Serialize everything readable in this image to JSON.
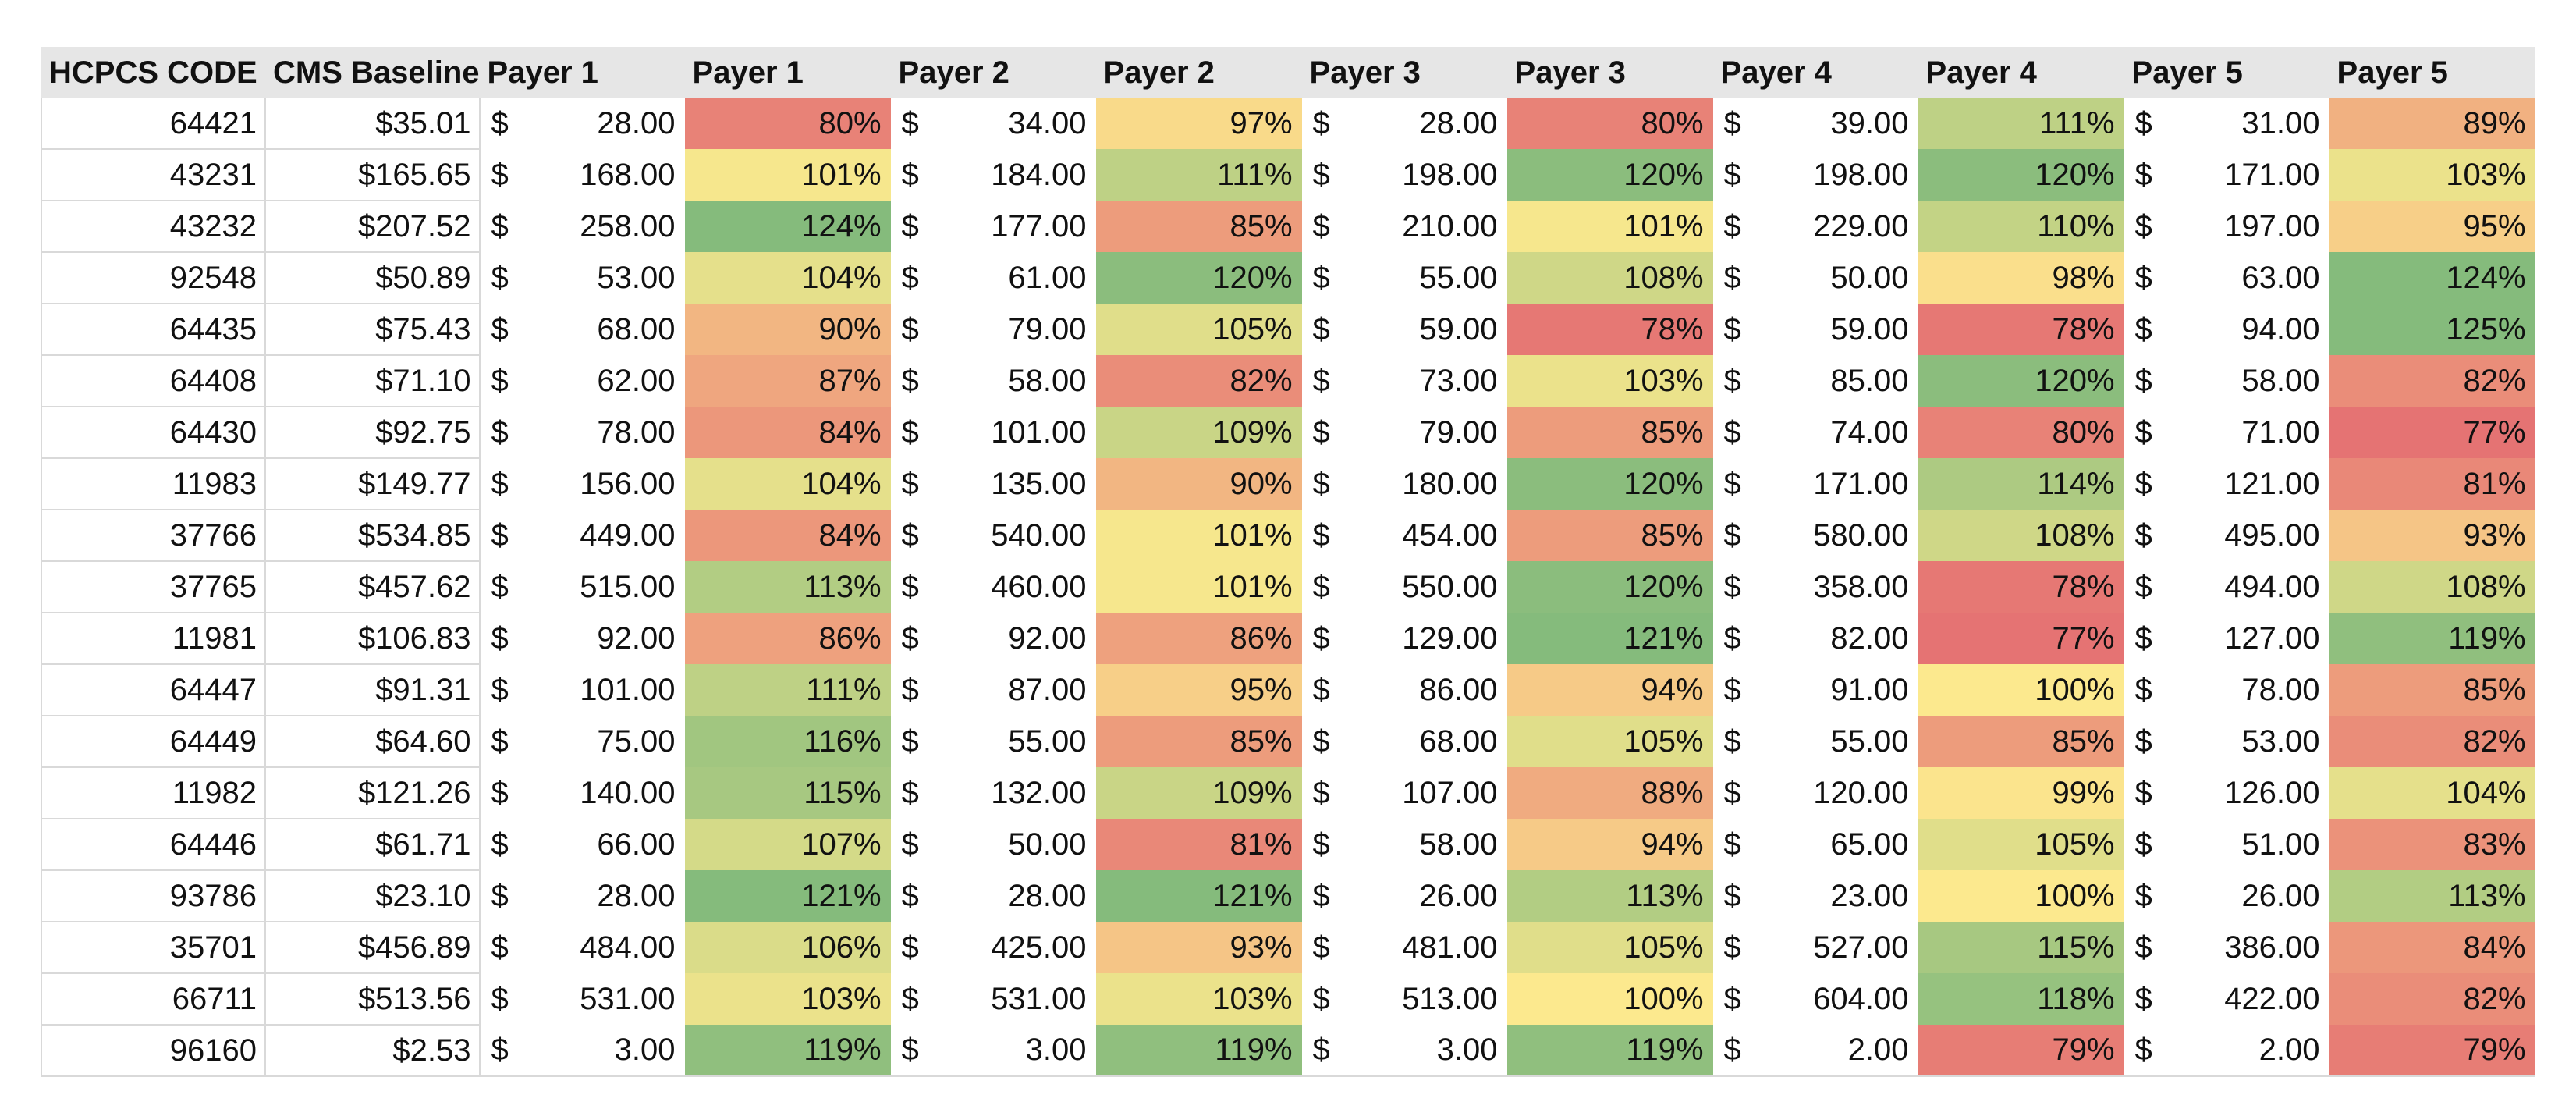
{
  "headers": [
    "HCPCS CODE",
    "CMS Baseline",
    "Payer 1",
    "Payer 1",
    "Payer 2",
    "Payer 2",
    "Payer 3",
    "Payer 3",
    "Payer 4",
    "Payer 4",
    "Payer 5",
    "Payer 5"
  ],
  "currency_symbol": "$",
  "rows": [
    {
      "code": "64421",
      "baseline": "$35.01",
      "payers": [
        {
          "amount": "28.00",
          "pct": "80%"
        },
        {
          "amount": "34.00",
          "pct": "97%"
        },
        {
          "amount": "28.00",
          "pct": "80%"
        },
        {
          "amount": "39.00",
          "pct": "111%"
        },
        {
          "amount": "31.00",
          "pct": "89%"
        }
      ]
    },
    {
      "code": "43231",
      "baseline": "$165.65",
      "payers": [
        {
          "amount": "168.00",
          "pct": "101%"
        },
        {
          "amount": "184.00",
          "pct": "111%"
        },
        {
          "amount": "198.00",
          "pct": "120%"
        },
        {
          "amount": "198.00",
          "pct": "120%"
        },
        {
          "amount": "171.00",
          "pct": "103%"
        }
      ]
    },
    {
      "code": "43232",
      "baseline": "$207.52",
      "payers": [
        {
          "amount": "258.00",
          "pct": "124%"
        },
        {
          "amount": "177.00",
          "pct": "85%"
        },
        {
          "amount": "210.00",
          "pct": "101%"
        },
        {
          "amount": "229.00",
          "pct": "110%"
        },
        {
          "amount": "197.00",
          "pct": "95%"
        }
      ]
    },
    {
      "code": "92548",
      "baseline": "$50.89",
      "payers": [
        {
          "amount": "53.00",
          "pct": "104%"
        },
        {
          "amount": "61.00",
          "pct": "120%"
        },
        {
          "amount": "55.00",
          "pct": "108%"
        },
        {
          "amount": "50.00",
          "pct": "98%"
        },
        {
          "amount": "63.00",
          "pct": "124%"
        }
      ]
    },
    {
      "code": "64435",
      "baseline": "$75.43",
      "payers": [
        {
          "amount": "68.00",
          "pct": "90%"
        },
        {
          "amount": "79.00",
          "pct": "105%"
        },
        {
          "amount": "59.00",
          "pct": "78%"
        },
        {
          "amount": "59.00",
          "pct": "78%"
        },
        {
          "amount": "94.00",
          "pct": "125%"
        }
      ]
    },
    {
      "code": "64408",
      "baseline": "$71.10",
      "payers": [
        {
          "amount": "62.00",
          "pct": "87%"
        },
        {
          "amount": "58.00",
          "pct": "82%"
        },
        {
          "amount": "73.00",
          "pct": "103%"
        },
        {
          "amount": "85.00",
          "pct": "120%"
        },
        {
          "amount": "58.00",
          "pct": "82%"
        }
      ]
    },
    {
      "code": "64430",
      "baseline": "$92.75",
      "payers": [
        {
          "amount": "78.00",
          "pct": "84%"
        },
        {
          "amount": "101.00",
          "pct": "109%"
        },
        {
          "amount": "79.00",
          "pct": "85%"
        },
        {
          "amount": "74.00",
          "pct": "80%"
        },
        {
          "amount": "71.00",
          "pct": "77%"
        }
      ]
    },
    {
      "code": "11983",
      "baseline": "$149.77",
      "payers": [
        {
          "amount": "156.00",
          "pct": "104%"
        },
        {
          "amount": "135.00",
          "pct": "90%"
        },
        {
          "amount": "180.00",
          "pct": "120%"
        },
        {
          "amount": "171.00",
          "pct": "114%"
        },
        {
          "amount": "121.00",
          "pct": "81%"
        }
      ]
    },
    {
      "code": "37766",
      "baseline": "$534.85",
      "payers": [
        {
          "amount": "449.00",
          "pct": "84%"
        },
        {
          "amount": "540.00",
          "pct": "101%"
        },
        {
          "amount": "454.00",
          "pct": "85%"
        },
        {
          "amount": "580.00",
          "pct": "108%"
        },
        {
          "amount": "495.00",
          "pct": "93%"
        }
      ]
    },
    {
      "code": "37765",
      "baseline": "$457.62",
      "payers": [
        {
          "amount": "515.00",
          "pct": "113%"
        },
        {
          "amount": "460.00",
          "pct": "101%"
        },
        {
          "amount": "550.00",
          "pct": "120%"
        },
        {
          "amount": "358.00",
          "pct": "78%"
        },
        {
          "amount": "494.00",
          "pct": "108%"
        }
      ]
    },
    {
      "code": "11981",
      "baseline": "$106.83",
      "payers": [
        {
          "amount": "92.00",
          "pct": "86%"
        },
        {
          "amount": "92.00",
          "pct": "86%"
        },
        {
          "amount": "129.00",
          "pct": "121%"
        },
        {
          "amount": "82.00",
          "pct": "77%"
        },
        {
          "amount": "127.00",
          "pct": "119%"
        }
      ]
    },
    {
      "code": "64447",
      "baseline": "$91.31",
      "payers": [
        {
          "amount": "101.00",
          "pct": "111%"
        },
        {
          "amount": "87.00",
          "pct": "95%"
        },
        {
          "amount": "86.00",
          "pct": "94%"
        },
        {
          "amount": "91.00",
          "pct": "100%"
        },
        {
          "amount": "78.00",
          "pct": "85%"
        }
      ]
    },
    {
      "code": "64449",
      "baseline": "$64.60",
      "payers": [
        {
          "amount": "75.00",
          "pct": "116%"
        },
        {
          "amount": "55.00",
          "pct": "85%"
        },
        {
          "amount": "68.00",
          "pct": "105%"
        },
        {
          "amount": "55.00",
          "pct": "85%"
        },
        {
          "amount": "53.00",
          "pct": "82%"
        }
      ]
    },
    {
      "code": "11982",
      "baseline": "$121.26",
      "payers": [
        {
          "amount": "140.00",
          "pct": "115%"
        },
        {
          "amount": "132.00",
          "pct": "109%"
        },
        {
          "amount": "107.00",
          "pct": "88%"
        },
        {
          "amount": "120.00",
          "pct": "99%"
        },
        {
          "amount": "126.00",
          "pct": "104%"
        }
      ]
    },
    {
      "code": "64446",
      "baseline": "$61.71",
      "payers": [
        {
          "amount": "66.00",
          "pct": "107%"
        },
        {
          "amount": "50.00",
          "pct": "81%"
        },
        {
          "amount": "58.00",
          "pct": "94%"
        },
        {
          "amount": "65.00",
          "pct": "105%"
        },
        {
          "amount": "51.00",
          "pct": "83%"
        }
      ]
    },
    {
      "code": "93786",
      "baseline": "$23.10",
      "payers": [
        {
          "amount": "28.00",
          "pct": "121%"
        },
        {
          "amount": "28.00",
          "pct": "121%"
        },
        {
          "amount": "26.00",
          "pct": "113%"
        },
        {
          "amount": "23.00",
          "pct": "100%"
        },
        {
          "amount": "26.00",
          "pct": "113%"
        }
      ]
    },
    {
      "code": "35701",
      "baseline": "$456.89",
      "payers": [
        {
          "amount": "484.00",
          "pct": "106%"
        },
        {
          "amount": "425.00",
          "pct": "93%"
        },
        {
          "amount": "481.00",
          "pct": "105%"
        },
        {
          "amount": "527.00",
          "pct": "115%"
        },
        {
          "amount": "386.00",
          "pct": "84%"
        }
      ]
    },
    {
      "code": "66711",
      "baseline": "$513.56",
      "payers": [
        {
          "amount": "531.00",
          "pct": "103%"
        },
        {
          "amount": "531.00",
          "pct": "103%"
        },
        {
          "amount": "513.00",
          "pct": "100%"
        },
        {
          "amount": "604.00",
          "pct": "118%"
        },
        {
          "amount": "422.00",
          "pct": "82%"
        }
      ]
    },
    {
      "code": "96160",
      "baseline": "$2.53",
      "payers": [
        {
          "amount": "3.00",
          "pct": "119%"
        },
        {
          "amount": "3.00",
          "pct": "119%"
        },
        {
          "amount": "3.00",
          "pct": "119%"
        },
        {
          "amount": "2.00",
          "pct": "79%"
        },
        {
          "amount": "2.00",
          "pct": "79%"
        }
      ]
    }
  ],
  "color_scale": {
    "low": "#e57373",
    "mid": "#fce98e",
    "high": "#85bb7c",
    "low_at": 77,
    "mid_at": 100,
    "high_at": 121
  }
}
